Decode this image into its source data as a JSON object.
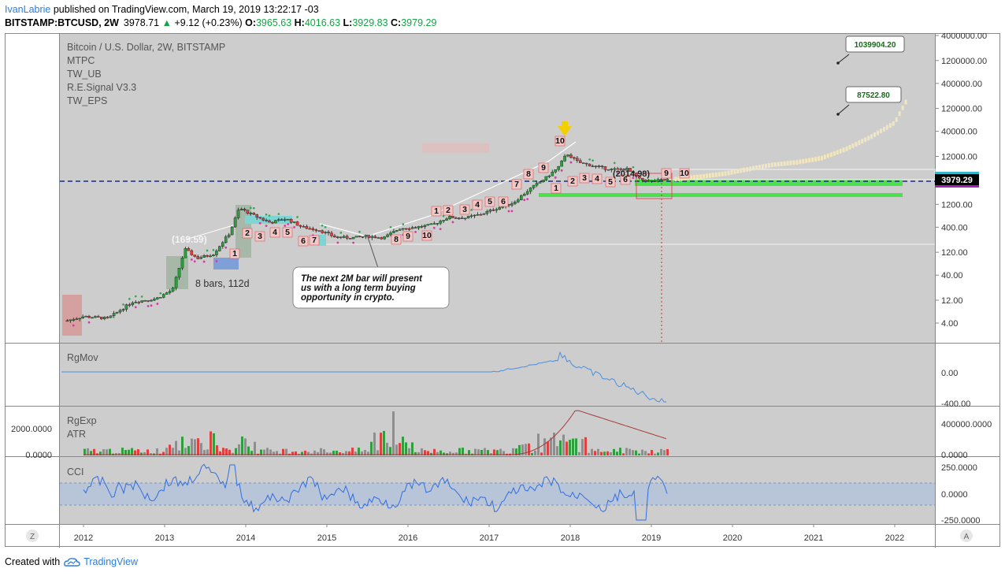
{
  "header": {
    "author": "IvanLabrie",
    "published_text": "published on TradingView.com, March 19, 2019 13:22:17 -03",
    "symbol": "BITSTAMP:BTCUSD, 2W",
    "last": "3978.71",
    "change": "+9.12 (+0.23%)",
    "open_label": "O:",
    "open": "3965.63",
    "high_label": "H:",
    "high": "4016.63",
    "low_label": "L:",
    "low": "3929.83",
    "close_label": "C:",
    "close": "3979.29"
  },
  "legend": {
    "title": "Bitcoin / U.S. Dollar, 2W, BITSTAMP",
    "indicators": [
      "MTPC",
      "TW_UB",
      "R.E.Signal V3.3",
      "TW_EPS"
    ]
  },
  "annotations": {
    "callout_text": [
      "The next 2M bar will present",
      "us with a long term buying",
      " opportunity in crypto."
    ],
    "bars_label": "8 bars, 112d",
    "paren_left": "(169.59)",
    "paren_right": "(2014.98)",
    "target_high": "1039904.20",
    "target_low": "87522.80",
    "price_tag": "3979.29",
    "seq_2013": [
      "1"
    ],
    "seq_2014": [
      "2",
      "3",
      "4",
      "5",
      "6",
      "7"
    ],
    "seq_2015": [
      "8",
      "9",
      "10"
    ],
    "seq_2016": [
      "1",
      "2",
      "3",
      "4",
      "5",
      "6",
      "7",
      "8",
      "9",
      "1",
      "10"
    ],
    "seq_2018": [
      "2",
      "3",
      "4",
      "5",
      "6",
      "9",
      "10"
    ]
  },
  "colors": {
    "background": "#cdcdcd",
    "bull_candle": "#2e9e3e",
    "bear_candle": "#e04040",
    "projection": "#f2e6bf",
    "cci_line": "#2f6fe0",
    "rgmov_line": "#4a8fe0",
    "atr_line": "#a83a3a",
    "band": "#b8c4d8",
    "highlight_green": "#4ce04c",
    "tag_bg": "#000000"
  },
  "chart_data": [
    {
      "type": "line",
      "title": "Bitcoin / U.S. Dollar, 2W, BITSTAMP",
      "scale": "log",
      "x_ticks": [
        "2012",
        "2013",
        "2014",
        "2015",
        "2016",
        "2017",
        "2018",
        "2019",
        "2020",
        "2021",
        "2022"
      ],
      "y_ticks": [
        "4000000.00",
        "1200000.00",
        "400000.00",
        "120000.00",
        "40000.00",
        "12000.00",
        "4000.00",
        "1200.00",
        "400.00",
        "120.00",
        "40.00",
        "12.00",
        "4.00"
      ],
      "series": [
        {
          "x": [
            2011.8,
            2012.0,
            2012.3,
            2012.6,
            2012.9,
            2013.1,
            2013.25,
            2013.4,
            2013.6,
            2013.8,
            2013.92,
            2014.1,
            2014.3,
            2014.5,
            2014.7,
            2014.9,
            2015.1,
            2015.3,
            2015.5,
            2015.7,
            2015.9,
            2016.1,
            2016.3,
            2016.5,
            2016.7,
            2016.9,
            2017.1,
            2017.3,
            2017.5,
            2017.7,
            2017.85,
            2017.96,
            2018.1,
            2018.3,
            2018.5,
            2018.7,
            2018.85,
            2019.0,
            2019.2
          ],
          "values": [
            4.5,
            5.5,
            5,
            11,
            13,
            20,
            140,
            90,
            110,
            300,
            1000,
            700,
            500,
            600,
            400,
            350,
            250,
            240,
            260,
            240,
            380,
            400,
            450,
            650,
            620,
            750,
            1000,
            1300,
            2500,
            4300,
            7000,
            13800,
            9000,
            7500,
            6400,
            6500,
            4000,
            3600,
            3979
          ]
        },
        {
          "x": [
            2019.3,
            2019.6,
            2019.9,
            2020.2,
            2020.5,
            2020.8,
            2021.1,
            2021.4,
            2021.7,
            2022.0,
            2022.15
          ],
          "values": [
            4000,
            4500,
            5200,
            6500,
            8000,
            9000,
            11000,
            17000,
            30000,
            60000,
            180000
          ]
        }
      ]
    },
    {
      "type": "line",
      "title": "RgMov",
      "y_ticks": [
        "0.00",
        "-400.00"
      ]
    },
    {
      "type": "bar",
      "title": "RgExp",
      "subtitle": "ATR",
      "y_ticks_left": [
        "2000.0000",
        "0.0000"
      ],
      "y_ticks_right": [
        "400000.0000",
        "0.0000"
      ]
    },
    {
      "type": "line",
      "title": "CCI",
      "y_ticks": [
        "250.0000",
        "0.0000",
        "-250.0000"
      ]
    }
  ],
  "footer": {
    "created_with": "Created with",
    "brand": "TradingView"
  }
}
